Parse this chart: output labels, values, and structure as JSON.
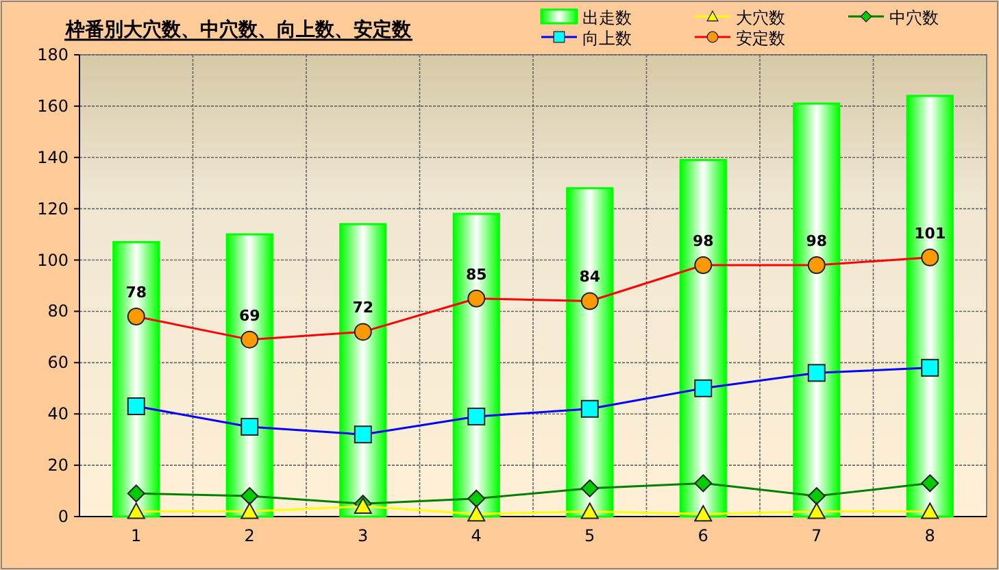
{
  "chart_data": {
    "type": "bar",
    "title": "枠番別大穴数、中穴数、向上数、安定数",
    "categories": [
      "1",
      "2",
      "3",
      "4",
      "5",
      "6",
      "7",
      "8"
    ],
    "ylim": [
      0,
      180
    ],
    "yticks": [
      0,
      20,
      40,
      60,
      80,
      100,
      120,
      140,
      160,
      180
    ],
    "grid": true,
    "legend": "top right",
    "series": [
      {
        "name": "出走数",
        "color": "#00ff00",
        "values": [
          107,
          110,
          114,
          118,
          128,
          139,
          161,
          164
        ]
      },
      {
        "name": "大穴数",
        "type": "line",
        "marker": "triangle",
        "color": "#ffff00",
        "values": [
          2,
          2,
          4,
          1,
          2,
          1,
          2,
          2
        ]
      },
      {
        "name": "中穴数",
        "type": "line",
        "marker": "diamond",
        "color": "#008000",
        "values": [
          9,
          8,
          5,
          7,
          11,
          13,
          8,
          13
        ]
      },
      {
        "name": "向上数",
        "type": "line",
        "marker": "square",
        "color": "#0000ff",
        "values": [
          43,
          35,
          32,
          39,
          42,
          50,
          56,
          58
        ]
      },
      {
        "name": "安定数",
        "type": "line",
        "marker": "circle",
        "color": "#ff0000",
        "values": [
          78,
          69,
          72,
          85,
          84,
          98,
          98,
          101
        ],
        "value_labels": [
          "78",
          "69",
          "72",
          "85",
          "84",
          "98",
          "98",
          "101"
        ]
      }
    ]
  }
}
